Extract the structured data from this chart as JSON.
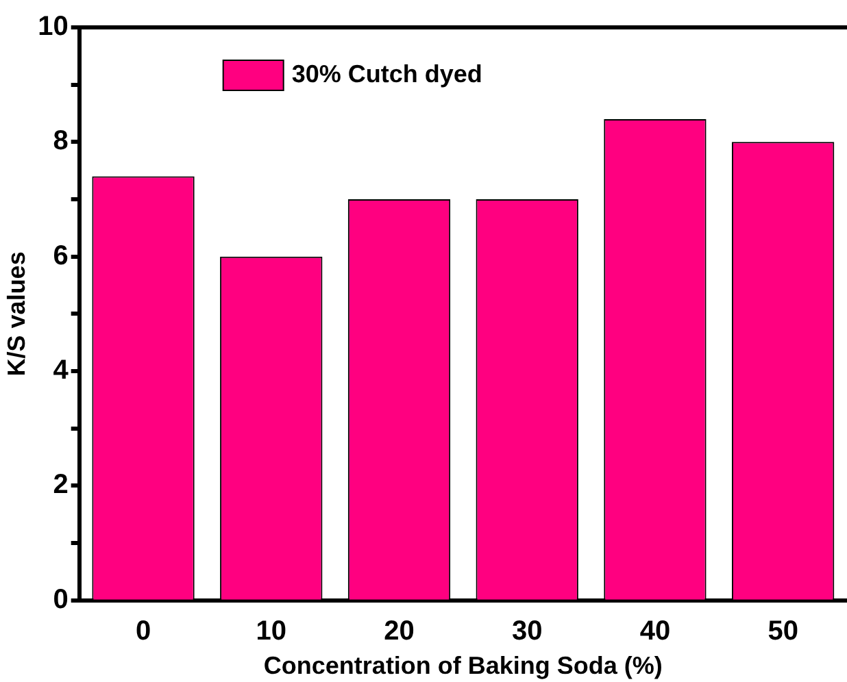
{
  "chart_data": {
    "type": "bar",
    "xlabel": "Concentration of Baking Soda (%)",
    "ylabel": "K/S values",
    "categories": [
      "0",
      "10",
      "20",
      "30",
      "40",
      "50"
    ],
    "series": [
      {
        "name": "30% Cutch dyed",
        "color": "#ff0080",
        "values": [
          7.4,
          6,
          7,
          7,
          8.4,
          8
        ]
      }
    ],
    "ylim": [
      0,
      10
    ],
    "yticks": [
      0,
      {
        "value": 1,
        "label": null
      },
      2,
      {
        "value": 3,
        "label": null
      },
      4,
      {
        "value": 5,
        "label": null
      },
      6,
      {
        "value": 7,
        "label": null
      },
      8,
      {
        "value": 9,
        "label": null
      },
      10
    ],
    "grid": false,
    "legend": "top left"
  }
}
